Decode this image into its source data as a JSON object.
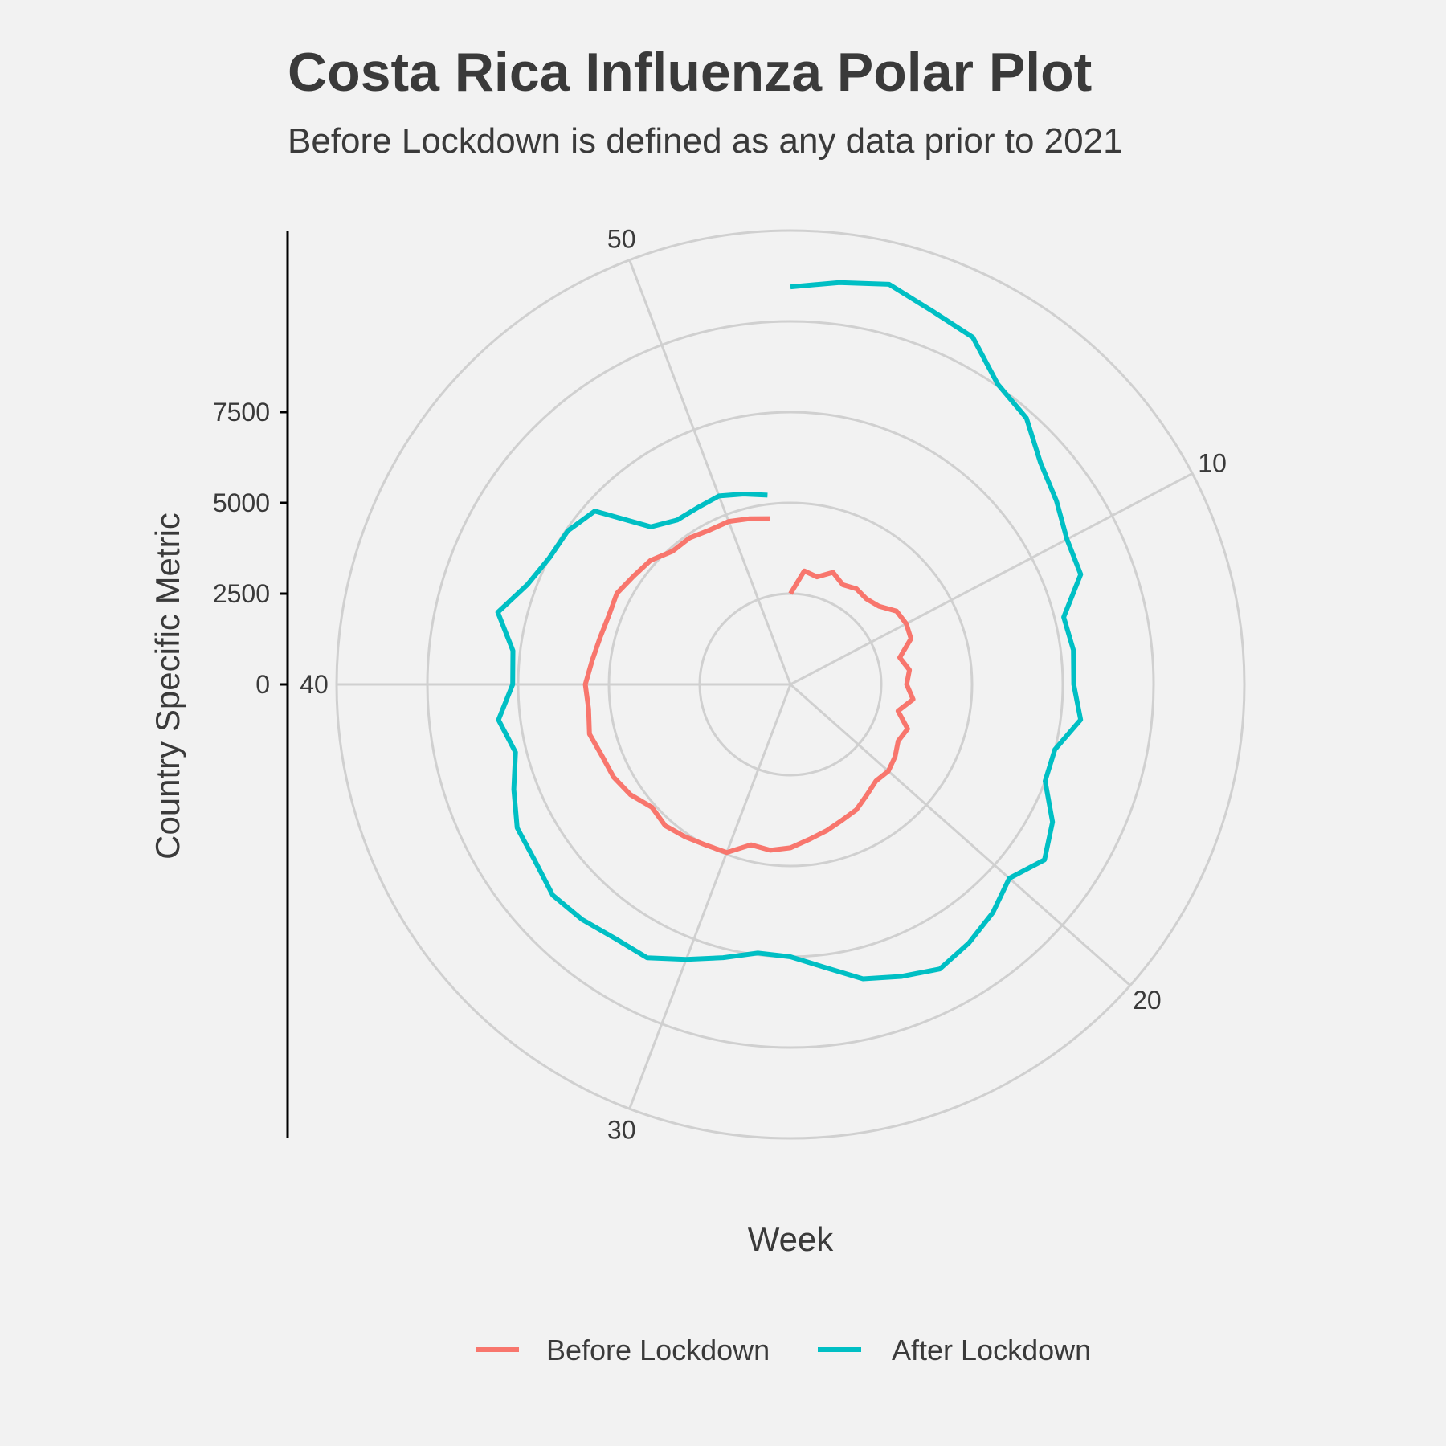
{
  "chart_data": {
    "type": "line",
    "coord": "polar",
    "title": "Costa Rica Influenza Polar Plot",
    "subtitle": "Before Lockdown is defined as any data prior to 2021",
    "xlabel": "Week",
    "ylabel": "Country Specific Metric",
    "theta_range": [
      1,
      53
    ],
    "theta_ticks": [
      10,
      20,
      30,
      40,
      50
    ],
    "r_range": [
      -2500,
      10000
    ],
    "r_ticks": [
      0,
      2500,
      5000,
      7500
    ],
    "grid": true,
    "legend_position": "bottom",
    "colors": {
      "before": "#f8766d",
      "after": "#00bfc4",
      "grid": "#d0d0d0",
      "axis": "#000000",
      "background": "#f2f2f2"
    },
    "series": [
      {
        "name": "Before Lockdown",
        "color": "#f8766d",
        "x": [
          1,
          2,
          3,
          4,
          5,
          6,
          7,
          8,
          9,
          10,
          11,
          12,
          13,
          14,
          15,
          16,
          17,
          18,
          19,
          20,
          21,
          22,
          23,
          24,
          25,
          26,
          27,
          28,
          29,
          30,
          31,
          32,
          33,
          34,
          35,
          36,
          37,
          38,
          39,
          40,
          41,
          42,
          43,
          44,
          45,
          46,
          47,
          48,
          49,
          50,
          51,
          52
        ],
        "values": [
          0,
          650,
          550,
          800,
          600,
          700,
          650,
          750,
          1050,
          1100,
          1050,
          600,
          800,
          700,
          900,
          550,
          950,
          850,
          1000,
          1100,
          1050,
          1200,
          1400,
          1500,
          1650,
          1800,
          2000,
          2100,
          2050,
          2450,
          2500,
          2600,
          2700,
          2600,
          2850,
          3000,
          3050,
          3200,
          3100,
          3150,
          3000,
          2900,
          2850,
          2900,
          2750,
          2650,
          2400,
          2400,
          2300,
          2300,
          2200,
          2100
        ]
      },
      {
        "name": "After Lockdown",
        "color": "#00bfc4",
        "x": [
          1,
          2,
          3,
          4,
          5,
          6,
          7,
          8,
          9,
          10,
          11,
          12,
          13,
          14,
          15,
          16,
          17,
          18,
          19,
          20,
          21,
          22,
          23,
          24,
          25,
          26,
          27,
          28,
          29,
          30,
          31,
          32,
          33,
          34,
          35,
          36,
          37,
          38,
          39,
          40,
          41,
          42,
          43,
          44,
          45,
          46,
          47,
          48,
          49,
          50,
          51,
          52
        ],
        "values": [
          8450,
          8650,
          8850,
          8500,
          8300,
          7550,
          7300,
          6700,
          6400,
          6100,
          6050,
          5250,
          5350,
          5300,
          5550,
          5000,
          5000,
          5650,
          6000,
          5550,
          5900,
          6150,
          6350,
          6100,
          5850,
          5350,
          5000,
          4950,
          5250,
          5600,
          6000,
          6000,
          6150,
          6250,
          6050,
          6000,
          5650,
          5300,
          5600,
          5150,
          5200,
          5800,
          5250,
          5000,
          4950,
          4700,
          3300,
          3000,
          3000,
          3050,
          2900,
          2750
        ]
      }
    ],
    "legend": {
      "before_label": "Before Lockdown",
      "after_label": "After Lockdown"
    }
  }
}
